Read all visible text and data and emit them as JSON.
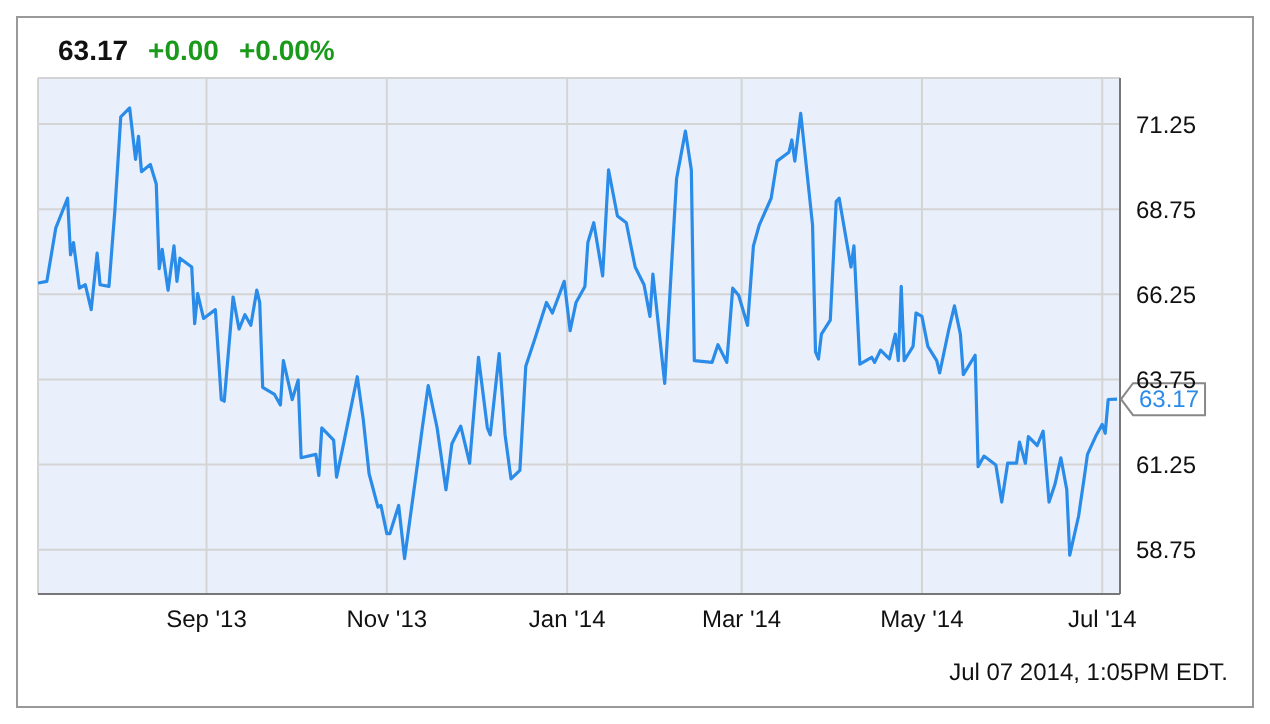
{
  "chart_data": {
    "type": "line",
    "annotations": [
      "63.17",
      "+0.00",
      "+0.00%",
      "Jul 07 2014, 1:05PM EDT.",
      {
        "text": "63.17",
        "x": "2014-07-06",
        "y": 63.17
      }
    ],
    "x": [
      "2013-07-06",
      "2013-07-09",
      "2013-07-12",
      "2013-07-16",
      "2013-07-17",
      "2013-07-18",
      "2013-07-20",
      "2013-07-22",
      "2013-07-24",
      "2013-07-26",
      "2013-07-27",
      "2013-07-30",
      "2013-08-01",
      "2013-08-03",
      "2013-08-06",
      "2013-08-08",
      "2013-08-09",
      "2013-08-10",
      "2013-08-13",
      "2013-08-15",
      "2013-08-16",
      "2013-08-17",
      "2013-08-19",
      "2013-08-21",
      "2013-08-22",
      "2013-08-23",
      "2013-08-27",
      "2013-08-28",
      "2013-08-29",
      "2013-08-31",
      "2013-09-04",
      "2013-09-06",
      "2013-09-07",
      "2013-09-10",
      "2013-09-12",
      "2013-09-14",
      "2013-09-16",
      "2013-09-18",
      "2013-09-19",
      "2013-09-20",
      "2013-09-24",
      "2013-09-26",
      "2013-09-27",
      "2013-09-30",
      "2013-10-02",
      "2013-10-03",
      "2013-10-08",
      "2013-10-09",
      "2013-10-10",
      "2013-10-14",
      "2013-10-15",
      "2013-10-17",
      "2013-10-22",
      "2013-10-24",
      "2013-10-26",
      "2013-10-29",
      "2013-10-30",
      "2013-11-01",
      "2013-11-02",
      "2013-11-05",
      "2013-11-06",
      "2013-11-07",
      "2013-11-11",
      "2013-11-13",
      "2013-11-15",
      "2013-11-18",
      "2013-11-21",
      "2013-11-23",
      "2013-11-26",
      "2013-11-29",
      "2013-12-02",
      "2013-12-05",
      "2013-12-06",
      "2013-12-09",
      "2013-12-11",
      "2013-12-13",
      "2013-12-16",
      "2013-12-18",
      "2013-12-21",
      "2013-12-25",
      "2013-12-27",
      "2013-12-31",
      "2014-01-02",
      "2014-01-04",
      "2014-01-07",
      "2014-01-08",
      "2014-01-10",
      "2014-01-13",
      "2014-01-15",
      "2014-01-18",
      "2014-01-21",
      "2014-01-24",
      "2014-01-27",
      "2014-01-29",
      "2014-01-30",
      "2014-02-03",
      "2014-02-07",
      "2014-02-10",
      "2014-02-12",
      "2014-02-13",
      "2014-02-19",
      "2014-02-21",
      "2014-02-24",
      "2014-02-26",
      "2014-02-28",
      "2014-03-03",
      "2014-03-05",
      "2014-03-07",
      "2014-03-11",
      "2014-03-13",
      "2014-03-17",
      "2014-03-18",
      "2014-03-19",
      "2014-03-21",
      "2014-03-25",
      "2014-03-26",
      "2014-03-27",
      "2014-03-28",
      "2014-03-31",
      "2014-04-02",
      "2014-04-03",
      "2014-04-07",
      "2014-04-08",
      "2014-04-10",
      "2014-04-14",
      "2014-04-15",
      "2014-04-17",
      "2014-04-20",
      "2014-04-22",
      "2014-04-23",
      "2014-04-24",
      "2014-04-25",
      "2014-04-28",
      "2014-04-29",
      "2014-05-01",
      "2014-05-03",
      "2014-05-06",
      "2014-05-07",
      "2014-05-10",
      "2014-05-12",
      "2014-05-14",
      "2014-05-15",
      "2014-05-19",
      "2014-05-20",
      "2014-05-22",
      "2014-05-26",
      "2014-05-28",
      "2014-05-30",
      "2014-06-02",
      "2014-06-03",
      "2014-06-05",
      "2014-06-06",
      "2014-06-09",
      "2014-06-11",
      "2014-06-13",
      "2014-06-15",
      "2014-06-17",
      "2014-06-19",
      "2014-06-20",
      "2014-06-23",
      "2014-06-25",
      "2014-06-26",
      "2014-06-29",
      "2014-07-01",
      "2014-07-02",
      "2014-07-03",
      "2014-07-06"
    ],
    "series": [
      {
        "color": "#2a8ce8",
        "values": [
          66.58,
          66.63,
          68.19,
          69.07,
          67.41,
          67.77,
          66.43,
          66.53,
          65.8,
          67.46,
          66.53,
          66.48,
          68.71,
          71.46,
          71.72,
          70.21,
          70.89,
          69.85,
          70.06,
          69.49,
          67.0,
          67.57,
          66.37,
          67.67,
          66.63,
          67.31,
          67.05,
          65.39,
          66.27,
          65.54,
          65.8,
          63.16,
          63.11,
          66.17,
          65.23,
          65.65,
          65.34,
          66.37,
          66.01,
          63.52,
          63.31,
          63.0,
          64.3,
          63.16,
          63.73,
          61.45,
          61.55,
          60.93,
          62.33,
          61.97,
          60.88,
          61.71,
          63.83,
          62.59,
          60.98,
          60.0,
          60.05,
          59.22,
          59.22,
          60.05,
          59.27,
          58.49,
          61.03,
          62.33,
          63.57,
          62.33,
          60.51,
          61.86,
          62.38,
          61.29,
          64.4,
          62.33,
          62.12,
          64.51,
          62.12,
          60.83,
          61.08,
          64.14,
          64.92,
          66.01,
          65.7,
          66.63,
          65.18,
          66.01,
          66.48,
          67.77,
          68.35,
          66.79,
          69.9,
          68.55,
          68.35,
          67.05,
          66.53,
          65.6,
          66.84,
          63.63,
          69.64,
          71.04,
          69.9,
          64.3,
          64.25,
          64.77,
          64.25,
          66.43,
          66.22,
          65.34,
          67.67,
          68.29,
          69.07,
          70.16,
          70.42,
          70.78,
          70.16,
          71.56,
          68.29,
          64.56,
          64.35,
          65.08,
          65.49,
          68.97,
          69.07,
          67.05,
          67.67,
          64.2,
          64.4,
          64.25,
          64.61,
          64.35,
          65.08,
          64.3,
          66.48,
          64.3,
          64.72,
          65.7,
          65.6,
          64.72,
          64.3,
          63.94,
          65.18,
          65.91,
          65.08,
          63.89,
          64.46,
          61.19,
          61.5,
          61.24,
          60.15,
          61.29,
          61.29,
          61.91,
          61.29,
          62.07,
          61.81,
          62.23,
          60.15,
          60.67,
          61.45,
          60.51,
          58.59,
          59.74,
          60.93,
          61.55,
          62.12,
          62.43,
          62.17,
          63.16,
          63.17
        ]
      }
    ],
    "xlim": [
      "2013-07-06",
      "2014-07-07"
    ],
    "xticks": [
      {
        "value": "2013-09-01",
        "label": "Sep '13"
      },
      {
        "value": "2013-11-01",
        "label": "Nov '13"
      },
      {
        "value": "2014-01-01",
        "label": "Jan '14"
      },
      {
        "value": "2014-03-01",
        "label": "Mar '14"
      },
      {
        "value": "2014-05-01",
        "label": "May '14"
      },
      {
        "value": "2014-07-01",
        "label": "Jul '14"
      }
    ],
    "ylim": [
      57.45,
      72.6
    ],
    "yticks": [
      58.75,
      61.25,
      63.75,
      66.25,
      68.75,
      71.25
    ],
    "grid": true,
    "line_style": "solid"
  }
}
